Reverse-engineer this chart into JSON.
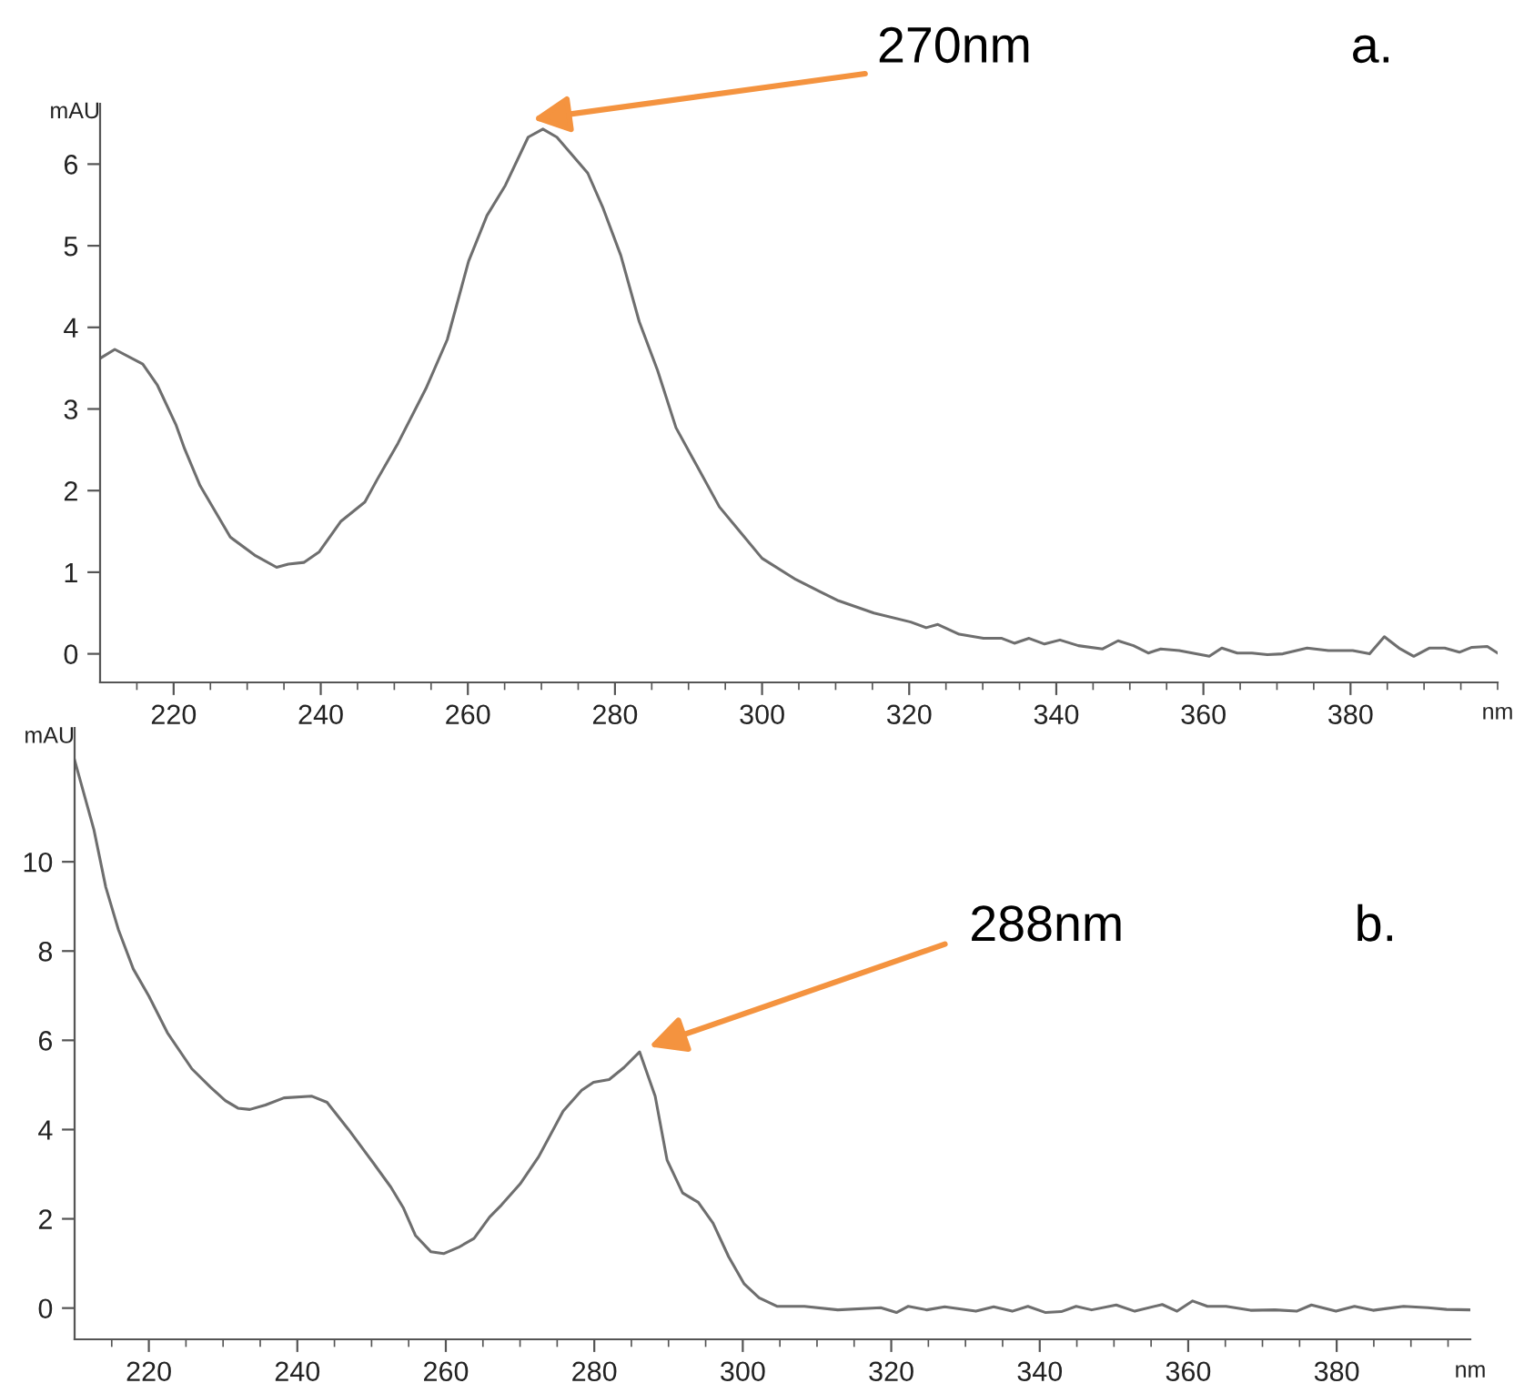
{
  "chart_data": [
    {
      "type": "line",
      "xlabel": "nm",
      "ylabel": "mAU",
      "color": "#6e6e6e",
      "xlim": [
        210,
        400
      ],
      "ylim": [
        -0.35,
        6.74
      ],
      "xticks": [
        {
          "value": 215,
          "label": null
        },
        220,
        {
          "value": 225,
          "label": null
        },
        {
          "value": 230,
          "label": null
        },
        {
          "value": 235,
          "label": null
        },
        240,
        {
          "value": 245,
          "label": null
        },
        {
          "value": 250,
          "label": null
        },
        {
          "value": 255,
          "label": null
        },
        260,
        {
          "value": 265,
          "label": null
        },
        {
          "value": 270,
          "label": null
        },
        {
          "value": 275,
          "label": null
        },
        280,
        {
          "value": 285,
          "label": null
        },
        {
          "value": 290,
          "label": null
        },
        {
          "value": 295,
          "label": null
        },
        300,
        {
          "value": 305,
          "label": null
        },
        {
          "value": 310,
          "label": null
        },
        {
          "value": 315,
          "label": null
        },
        320,
        {
          "value": 325,
          "label": null
        },
        {
          "value": 330,
          "label": null
        },
        {
          "value": 335,
          "label": null
        },
        340,
        {
          "value": 345,
          "label": null
        },
        {
          "value": 350,
          "label": null
        },
        {
          "value": 355,
          "label": null
        },
        360,
        {
          "value": 365,
          "label": null
        },
        {
          "value": 370,
          "label": null
        },
        {
          "value": 375,
          "label": null
        },
        380,
        {
          "value": 385,
          "label": null
        },
        {
          "value": 390,
          "label": null
        },
        {
          "value": 395,
          "label": null
        },
        {
          "value": 400,
          "label": null
        }
      ],
      "yticks": [
        0,
        1,
        2,
        3,
        4,
        5,
        6
      ],
      "x": [
        210,
        212,
        215.8,
        217.8,
        220.3,
        221.5,
        223.6,
        227.7,
        231,
        234,
        235.6,
        237.7,
        239.8,
        242.7,
        246,
        247.7,
        250.5,
        254.3,
        257.2,
        260.1,
        262.6,
        265.1,
        268.2,
        270.2,
        272.1,
        276.3,
        278.3,
        280.8,
        283.3,
        285.8,
        288.3,
        290.8,
        294.2,
        296.6,
        300,
        304.6,
        307.9,
        310.4,
        315.2,
        320.2,
        322.3,
        323.9,
        326.8,
        330.1,
        332.6,
        334.3,
        336.3,
        338.4,
        340.5,
        343,
        346.3,
        348.4,
        350.5,
        352.5,
        354.2,
        356.7,
        360.8,
        362.5,
        364.6,
        366.6,
        368.7,
        370.8,
        374.1,
        377,
        380.3,
        382.6,
        384.6,
        386.6,
        388.6,
        390.7,
        392.8,
        394.8,
        396.5,
        398.6,
        400
      ],
      "values": [
        3.62,
        3.73,
        3.55,
        3.29,
        2.81,
        2.51,
        2.06,
        1.43,
        1.21,
        1.06,
        1.1,
        1.12,
        1.25,
        1.62,
        1.86,
        2.14,
        2.58,
        3.25,
        3.85,
        4.81,
        5.37,
        5.74,
        6.33,
        6.43,
        6.33,
        5.89,
        5.48,
        4.88,
        4.07,
        3.47,
        2.77,
        2.36,
        1.8,
        1.54,
        1.17,
        0.91,
        0.76,
        0.65,
        0.5,
        0.39,
        0.32,
        0.36,
        0.24,
        0.19,
        0.19,
        0.13,
        0.19,
        0.12,
        0.17,
        0.1,
        0.06,
        0.16,
        0.1,
        0.01,
        0.06,
        0.04,
        -0.03,
        0.07,
        0.01,
        0.01,
        -0.01,
        0,
        0.07,
        0.04,
        0.04,
        0,
        0.21,
        0.07,
        -0.03,
        0.07,
        0.07,
        0.02,
        0.08,
        0.09,
        0.01
      ],
      "annotations": [
        "270nm",
        "a."
      ]
    },
    {
      "type": "line",
      "xlabel": "nm",
      "ylabel": "mAU",
      "color": "#6e6e6e",
      "xlim": [
        210,
        398
      ],
      "ylim": [
        -0.7,
        13
      ],
      "xticks": [
        {
          "value": 215,
          "label": null
        },
        220,
        {
          "value": 225,
          "label": null
        },
        {
          "value": 230,
          "label": null
        },
        {
          "value": 235,
          "label": null
        },
        240,
        {
          "value": 245,
          "label": null
        },
        {
          "value": 250,
          "label": null
        },
        {
          "value": 255,
          "label": null
        },
        260,
        {
          "value": 265,
          "label": null
        },
        {
          "value": 270,
          "label": null
        },
        {
          "value": 275,
          "label": null
        },
        280,
        {
          "value": 285,
          "label": null
        },
        {
          "value": 290,
          "label": null
        },
        {
          "value": 295,
          "label": null
        },
        300,
        {
          "value": 305,
          "label": null
        },
        {
          "value": 310,
          "label": null
        },
        {
          "value": 315,
          "label": null
        },
        320,
        {
          "value": 325,
          "label": null
        },
        {
          "value": 330,
          "label": null
        },
        {
          "value": 335,
          "label": null
        },
        340,
        {
          "value": 345,
          "label": null
        },
        {
          "value": 350,
          "label": null
        },
        {
          "value": 355,
          "label": null
        },
        360,
        {
          "value": 365,
          "label": null
        },
        {
          "value": 370,
          "label": null
        },
        {
          "value": 375,
          "label": null
        },
        380,
        {
          "value": 385,
          "label": null
        },
        {
          "value": 390,
          "label": null
        },
        {
          "value": 395,
          "label": null
        }
      ],
      "yticks": [
        0,
        2,
        4,
        6,
        8,
        10
      ],
      "x": [
        210,
        212.6,
        214.2,
        215.9,
        217.9,
        220,
        222.5,
        225.8,
        228.3,
        230.3,
        232,
        233.6,
        235.7,
        238.2,
        241.9,
        244,
        246.9,
        250.2,
        252.6,
        254.3,
        255.9,
        258,
        259.7,
        261.7,
        263.8,
        265.9,
        267.5,
        270,
        272.5,
        275.8,
        278.3,
        279.9,
        282,
        284,
        286.1,
        288.2,
        289.8,
        291.9,
        294,
        296,
        298.1,
        300.2,
        302.2,
        304.6,
        308.3,
        312.8,
        318.6,
        320.7,
        322.3,
        324.8,
        327.2,
        331.4,
        333.8,
        336.3,
        338.4,
        340.8,
        342.9,
        344.9,
        347,
        350.3,
        352.8,
        356.5,
        358.5,
        360.6,
        362.6,
        365.1,
        368.4,
        371.7,
        374.6,
        376.6,
        379.9,
        382.4,
        384.9,
        389,
        392.3,
        394.8,
        398
      ],
      "values": [
        12.28,
        10.72,
        9.43,
        8.48,
        7.6,
        6.99,
        6.17,
        5.36,
        4.95,
        4.65,
        4.48,
        4.45,
        4.55,
        4.71,
        4.75,
        4.61,
        4.0,
        3.26,
        2.71,
        2.24,
        1.63,
        1.26,
        1.22,
        1.36,
        1.56,
        2.04,
        2.31,
        2.78,
        3.39,
        4.41,
        4.88,
        5.06,
        5.12,
        5.39,
        5.74,
        4.75,
        3.32,
        2.58,
        2.37,
        1.9,
        1.15,
        0.54,
        0.23,
        0.04,
        0.04,
        -0.04,
        0.01,
        -0.1,
        0.04,
        -0.04,
        0.03,
        -0.07,
        0.03,
        -0.07,
        0.04,
        -0.1,
        -0.08,
        0.04,
        -0.04,
        0.07,
        -0.07,
        0.08,
        -0.07,
        0.16,
        0.04,
        0.04,
        -0.05,
        -0.04,
        -0.07,
        0.07,
        -0.07,
        0.04,
        -0.05,
        0.04,
        0.01,
        -0.03,
        -0.04
      ],
      "annotations": [
        "288nm",
        "b."
      ]
    }
  ]
}
